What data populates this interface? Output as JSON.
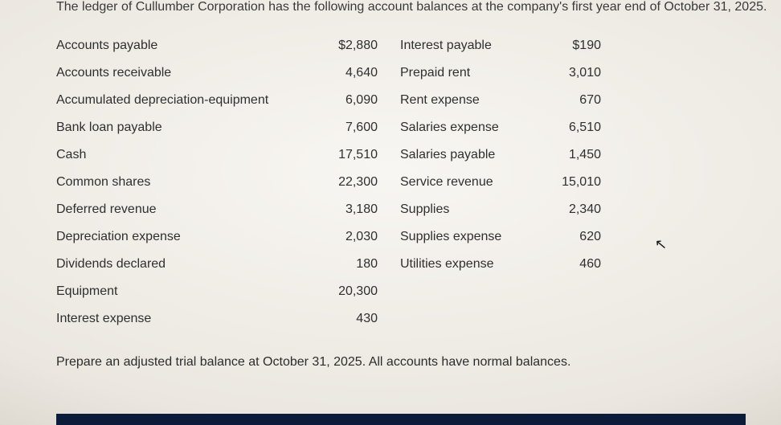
{
  "intro_text": "The ledger of Cullumber Corporation has the following account balances at the company's first year end of October 31, 2025.",
  "rows": [
    {
      "l_label": "Accounts payable",
      "l_val": "$2,880",
      "r_label": "Interest payable",
      "r_val": "$190"
    },
    {
      "l_label": "Accounts receivable",
      "l_val": "4,640",
      "r_label": "Prepaid rent",
      "r_val": "3,010"
    },
    {
      "l_label": "Accumulated depreciation-equipment",
      "l_val": "6,090",
      "r_label": "Rent expense",
      "r_val": "670"
    },
    {
      "l_label": "Bank loan payable",
      "l_val": "7,600",
      "r_label": "Salaries expense",
      "r_val": "6,510"
    },
    {
      "l_label": "Cash",
      "l_val": "17,510",
      "r_label": "Salaries payable",
      "r_val": "1,450"
    },
    {
      "l_label": "Common shares",
      "l_val": "22,300",
      "r_label": "Service revenue",
      "r_val": "15,010"
    },
    {
      "l_label": "Deferred revenue",
      "l_val": "3,180",
      "r_label": "Supplies",
      "r_val": "2,340"
    },
    {
      "l_label": "Depreciation expense",
      "l_val": "2,030",
      "r_label": "Supplies expense",
      "r_val": "620"
    },
    {
      "l_label": "Dividends declared",
      "l_val": "180",
      "r_label": "Utilities expense",
      "r_val": "460"
    },
    {
      "l_label": "Equipment",
      "l_val": "20,300",
      "r_label": "",
      "r_val": ""
    },
    {
      "l_label": "Interest expense",
      "l_val": "430",
      "r_label": "",
      "r_val": ""
    }
  ],
  "instruction_text": "Prepare an adjusted trial balance at October 31, 2025. All accounts have normal balances.",
  "colors": {
    "text": "#2a2a2a",
    "bar": "#0d1b3a"
  },
  "fontsize_pt": 12
}
